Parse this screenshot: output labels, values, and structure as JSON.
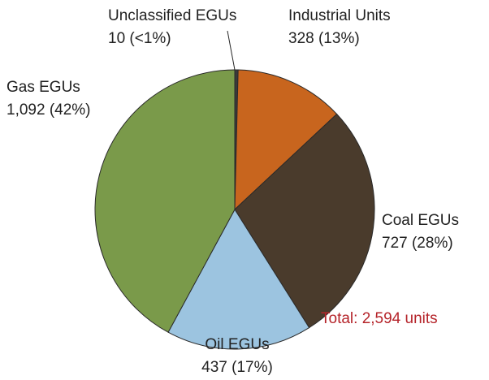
{
  "chart_data": {
    "type": "pie",
    "categories": [
      "Unclassified EGUs",
      "Industrial Units",
      "Coal EGUs",
      "Oil EGUs",
      "Gas EGUs"
    ],
    "values": [
      10,
      328,
      727,
      437,
      1092
    ],
    "value_labels": [
      "10 (<1%)",
      "328 (13%)",
      "727 (28%)",
      "437 (17%)",
      "1,092 (42%)"
    ],
    "colors": [
      "#3a3a3a",
      "#c8651e",
      "#4a3b2c",
      "#9cc4e0",
      "#7a9a4a"
    ],
    "total_label": "Total: 2,594 units"
  }
}
